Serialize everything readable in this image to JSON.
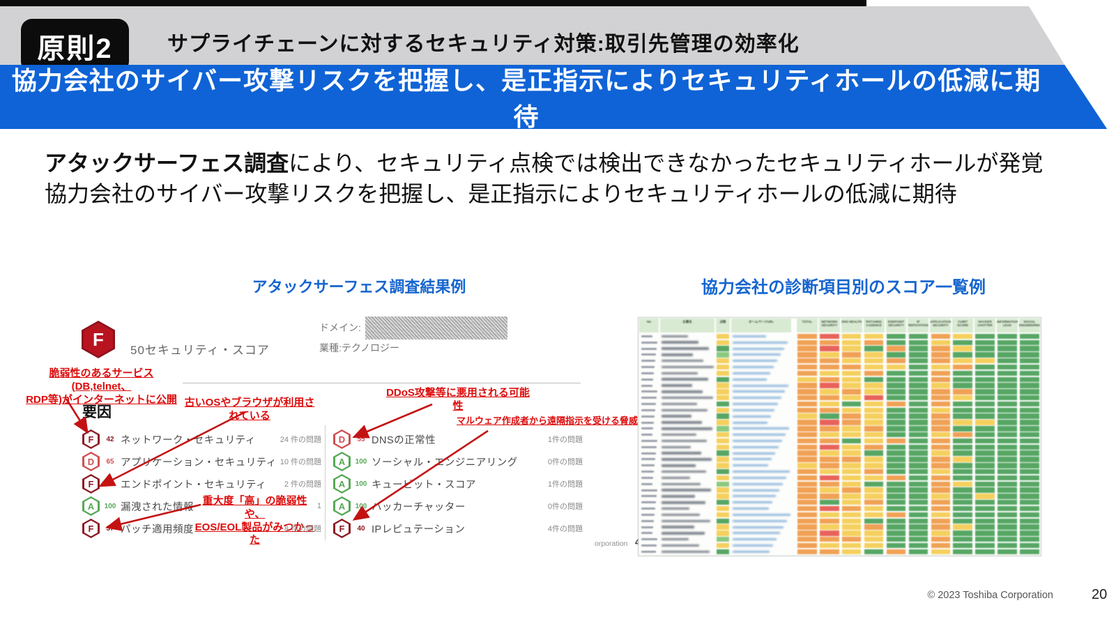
{
  "header": {
    "badge": "原則2",
    "title": "サプライチェーンに対するセキュリティ対策:取引先管理の効率化"
  },
  "banner": {
    "text": "協力会社のサイバー攻撃リスクを把握し、是正指示によりセキュリティホールの低減に期待",
    "bg": "#0f63d6"
  },
  "lead": {
    "bold": "アタックサーフェス調査",
    "line1_rest": "により、セキュリティ点検では検出できなかったセキュリティホールが発覚",
    "line2": "協力会社のサイバー攻撃リスクを把握し、是正指示によりセキュリティホールの低減に期待"
  },
  "attack_surface": {
    "title": "アタックサーフェス調査結果例",
    "overall_grade": "F",
    "overall_score_label": "50セキュリティ・スコア",
    "domain_label": "ドメイン:",
    "industry_label": "業種:テクノロジー",
    "factors_label": "要因",
    "annotations": {
      "vulnerable_service": [
        "脆弱性のあるサービス(DB,telnet、",
        "RDP等)がインターネットに公開"
      ],
      "old_os": "古いOSやブラウザが利用されている",
      "ddos": "DDoS攻撃等に悪用される可能性",
      "malware": "マルウェア作成者から遠隔指示を受ける脅威",
      "severity": [
        "重大度「高」の脆弱性や、",
        "EOS/EOL製品がみつかった"
      ]
    },
    "left_items": [
      {
        "grade": "F",
        "score": "42",
        "label": "ネットワーク・セキュリティ",
        "issues": "24 件の問題"
      },
      {
        "grade": "D",
        "score": "65",
        "label": "アプリケーション・セキュリティ",
        "issues": "10 件の問題"
      },
      {
        "grade": "F",
        "score": "46",
        "label": "エンドポイント・セキュリティ",
        "issues": "2 件の問題"
      },
      {
        "grade": "A",
        "score": "100",
        "label": "漏洩された情報",
        "issues": "1"
      },
      {
        "grade": "F",
        "score": "37",
        "label": "パッチ適用頻度",
        "issues": "8 件の問題"
      }
    ],
    "right_items": [
      {
        "grade": "D",
        "score": "55",
        "label": "DNSの正常性",
        "issues": "1件の問題"
      },
      {
        "grade": "A",
        "score": "100",
        "label": "ソーシャル・エンジニアリング",
        "issues": "0件の問題"
      },
      {
        "grade": "A",
        "score": "100",
        "label": "キュービット・スコア",
        "issues": "1件の問題"
      },
      {
        "grade": "A",
        "score": "100",
        "label": "ハッカーチャッター",
        "issues": "0件の問題"
      },
      {
        "grade": "F",
        "score": "40",
        "label": "IPレピュテーション",
        "issues": "4件の問題"
      }
    ],
    "grade_colors": {
      "F": "#8c1b24",
      "D": "#d05052",
      "A": "#57a957"
    },
    "watermark": "orporation",
    "watermark_page": "4"
  },
  "score_table": {
    "title": "協力会社の診断項目別のスコア一覧例",
    "columns": [
      "No",
      "企業名",
      "点数",
      "ホームページURL",
      "",
      "TOTAL",
      "NETWORK SECURITY",
      "DNS HEALTH",
      "PATCHING CADENCE",
      "ENDPOINT SECURITY",
      "IP REPUTATION",
      "APPLICATION SECURITY",
      "CUBIT SCORE",
      "HACKER CHATTER",
      "INFORMATION LEAK",
      "SOCIAL ENGINEERING"
    ],
    "colors": {
      "g": "#57a664",
      "l": "#8bc97f",
      "y": "#f5d05e",
      "o": "#f0a155",
      "r": "#e8625a"
    },
    "rows": [
      "y|oryyggoyggg",
      "y|ooyoggygggg",
      "g|orygogoyggg",
      "l|oyoyggogggg",
      "y|ooyyogoyygg",
      "y|oooyygyoggg",
      "y|oyyoggogggg",
      "g|yoygggogggg",
      "y|oryyggygggg",
      "y|oyoyggooggg",
      "y|ooyrggoyggg",
      "g|oygyogogggg",
      "y|ooyyggygggg",
      "g|ygoyggogggg",
      "y|oroyggoyygg",
      "l|ooyoggogggg",
      "y|oyyyggyoggg",
      "y|oogyogogggg",
      "y|oryoggogggg",
      "g|oyygggygggg",
      "y|oooyggoyggg",
      "y|yoyyggogggg",
      "g|oyyoggygggg",
      "y|oryyogogggg",
      "l|ooygggoyggg",
      "y|oyoyggogggg",
      "y|ooyyggygygg",
      "g|ogyoggogggg",
      "y|oroyggogggg",
      "y|oyyyogygggg",
      "g|ooygggogggg",
      "y|oyyoggoyggg",
      "y|oryyggygggg",
      "l|oooyggogggg",
      "y|oyyyggogggg",
      "g|ooygogygggg"
    ]
  },
  "footer": {
    "copyright": "© 2023 Toshiba Corporation",
    "page": "20"
  }
}
